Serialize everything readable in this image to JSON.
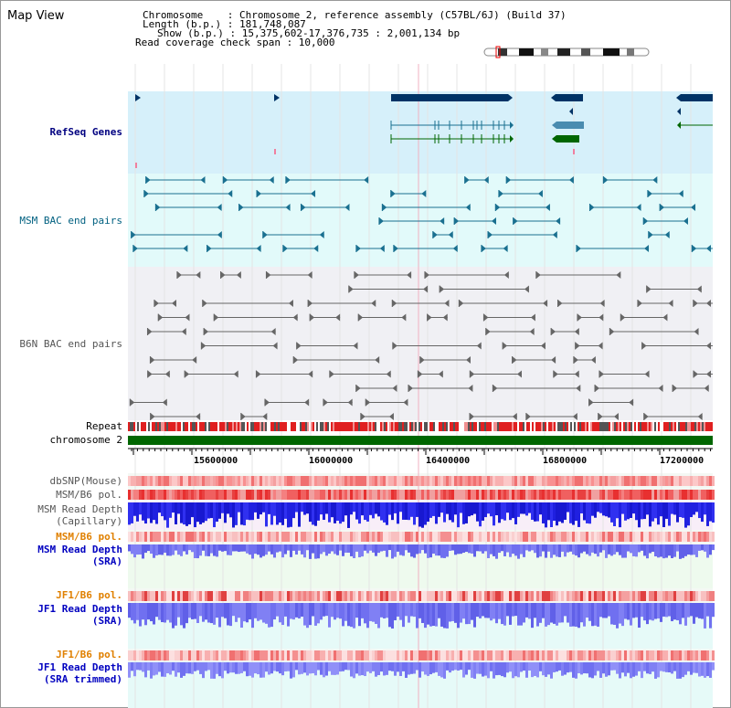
{
  "page": {
    "title": "Map View"
  },
  "info": {
    "chromosome_label": "Chromosome    : Chromosome 2, reference assembly (C57BL/6J) (Build 37)",
    "length_label": "Length (b.p.) : 181,748,087",
    "show_label": "Show (b.p.) : 15,375,602-17,376,735 : 2,001,134 bp",
    "coverage_label": "Read coverage check span : 10,000"
  },
  "tracks": {
    "refseq": "RefSeq Genes",
    "msm_bac": "MSM BAC end pairs",
    "b6n_bac": "B6N BAC end pairs",
    "repeat": "Repeat",
    "chromosome": "chromosome 2",
    "dbsnp": "dbSNP(Mouse)",
    "msm_b6_pol": "MSM/B6 pol.",
    "msm_read_depth_cap_1": "MSM Read Depth",
    "msm_read_depth_cap_2": "(Capillary)",
    "msm_b6_pol_2": "MSM/B6 pol.",
    "msm_read_depth_sra_1": "MSM Read Depth",
    "msm_read_depth_sra_2": "(SRA)",
    "jf1_b6_pol": "JF1/B6 pol.",
    "jf1_read_depth_1": "JF1 Read Depth",
    "jf1_read_depth_2": "(SRA)",
    "jf1_b6_pol_2": "JF1/B6 pol.",
    "jf1_trim_1": "JF1 Read Depth",
    "jf1_trim_2": "(SRA trimmed)"
  },
  "axis": {
    "ticks": [
      "15600000",
      "16000000",
      "16400000",
      "16800000",
      "17200000"
    ]
  },
  "colors": {
    "refseq_bg": "#d6f0fa",
    "bac_bg": "#e2fafa",
    "gene_navy": "#003366",
    "gene_teal": "#4a8cb0",
    "gene_green": "#006600",
    "bac_teal": "#1a7090",
    "bac_grey": "#666666",
    "chromosome_bar": "#006600",
    "repeat_red": "#e02020",
    "read_blue": "#2020e0",
    "read_lav": "#7070f0"
  }
}
